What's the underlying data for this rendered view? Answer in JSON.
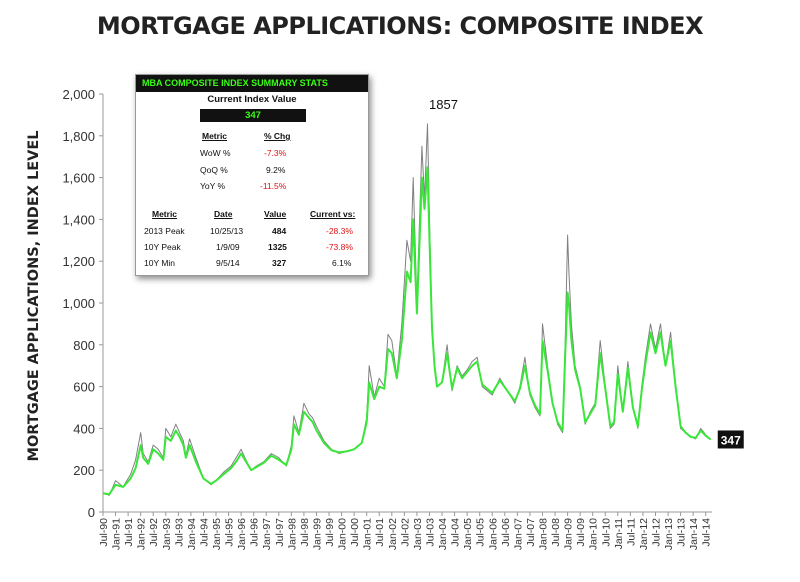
{
  "title": "MORTGAGE APPLICATIONS: COMPOSITE INDEX",
  "summary": {
    "header": "MBA COMPOSITE INDEX SUMMARY  STATS",
    "current_label": "Current Index Value",
    "current_value": "347",
    "chg_headers": [
      "Metric",
      "% Chg"
    ],
    "chg_rows": [
      {
        "metric": "WoW %",
        "chg": "-7.3%",
        "negative": true
      },
      {
        "metric": "QoQ %",
        "chg": "9.2%",
        "negative": false
      },
      {
        "metric": "YoY %",
        "chg": "-11.5%",
        "negative": true
      }
    ],
    "table_headers": [
      "Metric",
      "Date",
      "Value",
      "Current vs:"
    ],
    "table_rows": [
      {
        "metric": "2013 Peak",
        "date": "10/25/13",
        "value": "484",
        "vs": "-28.3%",
        "negative": true
      },
      {
        "metric": "10Y Peak",
        "date": "1/9/09",
        "value": "1325",
        "vs": "-73.8%",
        "negative": true
      },
      {
        "metric": "10Y Min",
        "date": "9/5/14",
        "value": "327",
        "vs": "6.1%",
        "negative": false
      }
    ]
  },
  "chart_data": {
    "type": "line",
    "title": "MORTGAGE APPLICATIONS: COMPOSITE INDEX",
    "xlabel": "",
    "ylabel": "MORTGAGE APPLICATIONS, INDEX LEVEL",
    "ylim": [
      0,
      2000
    ],
    "yticks": [
      "0",
      "200",
      "400",
      "600",
      "800",
      "1,000",
      "1,200",
      "1,400",
      "1,600",
      "1,800",
      "2,000"
    ],
    "xticks": [
      "Jul-90",
      "Jan-91",
      "Jul-91",
      "Jan-92",
      "Jul-92",
      "Jan-93",
      "Jul-93",
      "Jan-94",
      "Jul-94",
      "Jan-95",
      "Jul-95",
      "Jan-96",
      "Jul-96",
      "Jan-97",
      "Jul-97",
      "Jan-98",
      "Jul-98",
      "Jan-99",
      "Jul-99",
      "Jan-00",
      "Jul-00",
      "Jan-01",
      "Jul-01",
      "Jan-02",
      "Jul-02",
      "Jan-03",
      "Jul-03",
      "Jan-04",
      "Jul-04",
      "Jan-05",
      "Jul-05",
      "Jan-06",
      "Jul-06",
      "Jan-07",
      "Jul-07",
      "Jan-08",
      "Jul-08",
      "Jan-09",
      "Jul-09",
      "Jan-10",
      "Jul-10",
      "Jan-11",
      "Jul-11",
      "Jan-12",
      "Jul-12",
      "Jan-13",
      "Jul-13",
      "Jan-14",
      "Jul-14"
    ],
    "grid": false,
    "colors": {
      "raw": "#808080",
      "smoothed": "#39e639",
      "label_bg": "#111111",
      "label_fg": "#ffffff"
    },
    "annotations": [
      {
        "text": "1857",
        "x": 2003.42,
        "y": 1857
      },
      {
        "text": "347",
        "x": 2014.7,
        "y": 347,
        "boxed": true
      }
    ],
    "series": [
      {
        "role": "raw weekly",
        "x": [
          1990.5,
          1990.75,
          1991.0,
          1991.3,
          1991.6,
          1991.8,
          1992.0,
          1992.1,
          1992.3,
          1992.5,
          1992.7,
          1992.9,
          1993.0,
          1993.2,
          1993.4,
          1993.55,
          1993.7,
          1993.8,
          1993.95,
          1994.2,
          1994.5,
          1994.8,
          1995.0,
          1995.3,
          1995.6,
          1995.8,
          1996.0,
          1996.15,
          1996.4,
          1996.6,
          1996.9,
          1997.2,
          1997.5,
          1997.8,
          1998.0,
          1998.1,
          1998.3,
          1998.5,
          1998.7,
          1998.85,
          1999.0,
          1999.3,
          1999.6,
          1999.9,
          2000.2,
          2000.5,
          2000.8,
          2001.0,
          2001.1,
          2001.3,
          2001.5,
          2001.7,
          2001.85,
          2002.0,
          2002.2,
          2002.4,
          2002.6,
          2002.75,
          2002.85,
          2003.0,
          2003.2,
          2003.3,
          2003.42,
          2003.5,
          2003.6,
          2003.7,
          2003.8,
          2004.0,
          2004.2,
          2004.4,
          2004.6,
          2004.8,
          2005.0,
          2005.2,
          2005.4,
          2005.6,
          2005.8,
          2006.0,
          2006.3,
          2006.6,
          2006.9,
          2007.1,
          2007.3,
          2007.5,
          2007.7,
          2007.9,
          2008.0,
          2008.2,
          2008.4,
          2008.6,
          2008.8,
          2008.9,
          2009.0,
          2009.05,
          2009.15,
          2009.3,
          2009.5,
          2009.7,
          2009.9,
          2010.1,
          2010.3,
          2010.5,
          2010.7,
          2010.85,
          2011.0,
          2011.2,
          2011.4,
          2011.6,
          2011.8,
          2011.95,
          2012.1,
          2012.3,
          2012.5,
          2012.7,
          2012.9,
          2013.1,
          2013.3,
          2013.5,
          2013.7,
          2013.9,
          2014.1,
          2014.3,
          2014.5,
          2014.7
        ],
        "y": [
          90,
          80,
          150,
          120,
          180,
          250,
          380,
          280,
          240,
          320,
          300,
          260,
          400,
          360,
          420,
          380,
          340,
          270,
          350,
          260,
          160,
          130,
          150,
          190,
          220,
          260,
          300,
          260,
          200,
          220,
          240,
          280,
          260,
          220,
          320,
          460,
          380,
          520,
          470,
          450,
          410,
          340,
          300,
          280,
          290,
          300,
          330,
          450,
          700,
          550,
          640,
          600,
          850,
          820,
          650,
          900,
          1300,
          1200,
          1600,
          1000,
          1750,
          1500,
          1857,
          1400,
          900,
          700,
          600,
          620,
          800,
          580,
          700,
          650,
          680,
          720,
          740,
          600,
          580,
          560,
          640,
          580,
          520,
          600,
          740,
          560,
          500,
          460,
          900,
          700,
          520,
          420,
          380,
          800,
          1325,
          1150,
          900,
          700,
          600,
          420,
          480,
          520,
          820,
          600,
          400,
          420,
          700,
          480,
          720,
          500,
          400,
          600,
          740,
          900,
          780,
          900,
          700,
          860,
          600,
          400,
          380,
          360,
          350,
          400,
          370,
          347
        ]
      },
      {
        "role": "smoothed",
        "x": [
          1990.5,
          1990.75,
          1991.0,
          1991.3,
          1991.6,
          1991.8,
          1992.0,
          1992.1,
          1992.3,
          1992.5,
          1992.7,
          1992.9,
          1993.0,
          1993.2,
          1993.4,
          1993.55,
          1993.7,
          1993.8,
          1993.95,
          1994.2,
          1994.5,
          1994.8,
          1995.0,
          1995.3,
          1995.6,
          1995.8,
          1996.0,
          1996.15,
          1996.4,
          1996.6,
          1996.9,
          1997.2,
          1997.5,
          1997.8,
          1998.0,
          1998.1,
          1998.3,
          1998.5,
          1998.7,
          1998.85,
          1999.0,
          1999.3,
          1999.6,
          1999.9,
          2000.2,
          2000.5,
          2000.8,
          2001.0,
          2001.1,
          2001.3,
          2001.5,
          2001.7,
          2001.85,
          2002.0,
          2002.2,
          2002.4,
          2002.6,
          2002.75,
          2002.85,
          2003.0,
          2003.2,
          2003.3,
          2003.42,
          2003.5,
          2003.6,
          2003.7,
          2003.8,
          2004.0,
          2004.2,
          2004.4,
          2004.6,
          2004.8,
          2005.0,
          2005.2,
          2005.4,
          2005.6,
          2005.8,
          2006.0,
          2006.3,
          2006.6,
          2006.9,
          2007.1,
          2007.3,
          2007.5,
          2007.7,
          2007.9,
          2008.0,
          2008.2,
          2008.4,
          2008.6,
          2008.8,
          2008.9,
          2009.0,
          2009.05,
          2009.15,
          2009.3,
          2009.5,
          2009.7,
          2009.9,
          2010.1,
          2010.3,
          2010.5,
          2010.7,
          2010.85,
          2011.0,
          2011.2,
          2011.4,
          2011.6,
          2011.8,
          2011.95,
          2012.1,
          2012.3,
          2012.5,
          2012.7,
          2012.9,
          2013.1,
          2013.3,
          2013.5,
          2013.7,
          2013.9,
          2014.1,
          2014.3,
          2014.5,
          2014.7
        ],
        "y": [
          90,
          85,
          130,
          120,
          160,
          210,
          320,
          260,
          230,
          300,
          280,
          250,
          360,
          340,
          390,
          360,
          320,
          260,
          320,
          240,
          160,
          135,
          150,
          180,
          210,
          240,
          280,
          250,
          200,
          215,
          235,
          270,
          250,
          225,
          300,
          420,
          370,
          480,
          450,
          430,
          390,
          330,
          295,
          285,
          290,
          300,
          330,
          430,
          620,
          540,
          600,
          590,
          780,
          760,
          640,
          820,
          1150,
          1100,
          1400,
          950,
          1600,
          1450,
          1650,
          1300,
          880,
          700,
          600,
          620,
          760,
          590,
          690,
          640,
          670,
          700,
          720,
          610,
          590,
          570,
          630,
          580,
          530,
          590,
          700,
          570,
          510,
          470,
          820,
          680,
          520,
          430,
          390,
          740,
          1050,
          1000,
          820,
          680,
          590,
          430,
          470,
          510,
          760,
          590,
          410,
          430,
          660,
          480,
          690,
          500,
          410,
          580,
          710,
          860,
          760,
          860,
          700,
          820,
          600,
          410,
          380,
          360,
          355,
          390,
          365,
          347
        ]
      }
    ]
  }
}
